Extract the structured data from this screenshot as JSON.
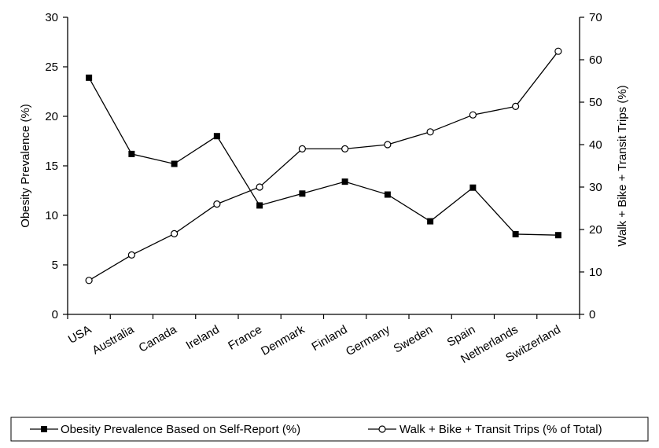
{
  "chart_data": {
    "type": "line",
    "categories": [
      "USA",
      "Australia",
      "Canada",
      "Ireland",
      "France",
      "Denmark",
      "Finland",
      "Germany",
      "Sweden",
      "Spain",
      "Netherlands",
      "Switzerland"
    ],
    "series": [
      {
        "name": "Obesity Prevalence Based on Self-Report (%)",
        "axis": "left",
        "marker": "filled-square",
        "values": [
          23.9,
          16.2,
          15.2,
          18.0,
          11.0,
          12.2,
          13.4,
          12.1,
          9.4,
          12.8,
          8.1,
          8.0
        ]
      },
      {
        "name": "Walk + Bike + Transit Trips (% of Total)",
        "axis": "right",
        "marker": "open-circle",
        "values": [
          8,
          14,
          19,
          26,
          30,
          39,
          39,
          40,
          43,
          47,
          49,
          62
        ]
      }
    ],
    "ylabel": "Obesity Prevalence (%)",
    "ylabel_right": "Walk + Bike + Transit Trips (%)",
    "ylim": [
      0,
      30
    ],
    "yticks": [
      0,
      5,
      10,
      15,
      20,
      25,
      30
    ],
    "ylim_right": [
      0,
      70
    ],
    "yticks_right": [
      0,
      10,
      20,
      30,
      40,
      50,
      60,
      70
    ],
    "grid": false,
    "legend_position": "bottom"
  }
}
